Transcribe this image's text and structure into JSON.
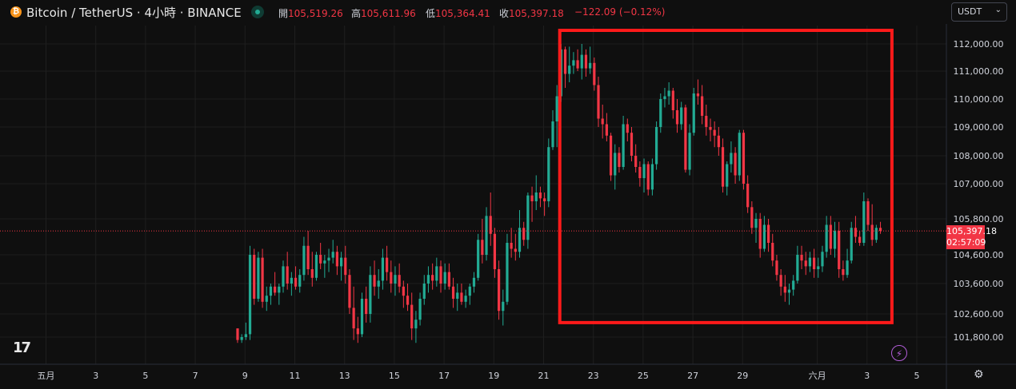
{
  "header": {
    "coin_icon": "bitcoin-icon",
    "symbol_title": "Bitcoin / TetherUS · 4小時 · BINANCE",
    "ohlc": [
      {
        "label": "開",
        "value": "105,519.26"
      },
      {
        "label": "高",
        "value": "105,611.96"
      },
      {
        "label": "低",
        "value": "105,364.41"
      },
      {
        "label": "收",
        "value": "105,397.18"
      }
    ],
    "change": "−122.09 (−0.12%)",
    "currency": "USDT"
  },
  "price_tag": {
    "price": "105,397.18",
    "countdown": "02:57:09"
  },
  "colors": {
    "up": "#22ab94",
    "down": "#f23645",
    "highlight_box": "#ff1a1a",
    "grid": "#1e1e1e",
    "background": "#0f0f0f"
  },
  "chart_data": {
    "type": "candlestick",
    "title": "Bitcoin / TetherUS · 4小時 · BINANCE",
    "y_ticks": [
      "112,000.00",
      "111,000.00",
      "110,000.00",
      "109,000.00",
      "108,000.00",
      "107,000.00",
      "105,800.00",
      "104,600.00",
      "103,600.00",
      "102,600.00",
      "101,800.00"
    ],
    "y_tick_values": [
      112000,
      111000,
      110000,
      109000,
      108000,
      107000,
      105800,
      104600,
      103600,
      102600,
      101800
    ],
    "x_ticks": [
      {
        "label": "五月",
        "day": 1
      },
      {
        "label": "3",
        "day": 3
      },
      {
        "label": "5",
        "day": 5
      },
      {
        "label": "7",
        "day": 7
      },
      {
        "label": "9",
        "day": 9
      },
      {
        "label": "11",
        "day": 11
      },
      {
        "label": "13",
        "day": 13
      },
      {
        "label": "15",
        "day": 15
      },
      {
        "label": "17",
        "day": 17
      },
      {
        "label": "19",
        "day": 19
      },
      {
        "label": "21",
        "day": 21
      },
      {
        "label": "23",
        "day": 23
      },
      {
        "label": "25",
        "day": 25
      },
      {
        "label": "27",
        "day": 27
      },
      {
        "label": "29",
        "day": 29
      },
      {
        "label": "六月",
        "day": 32
      },
      {
        "label": "3",
        "day": 34
      },
      {
        "label": "5",
        "day": 36
      }
    ],
    "current_price": 105397.18,
    "highlight_range": {
      "day_start": 21.65,
      "day_end": 35.0,
      "price_low": 102300,
      "price_high": 112500
    },
    "candles_start_day": 8.7,
    "candles_step_days": 0.1667,
    "candles": [
      [
        102100,
        102100,
        101600,
        101700
      ],
      [
        101700,
        101900,
        101600,
        101800
      ],
      [
        101800,
        102300,
        101700,
        101900
      ],
      [
        101900,
        104900,
        101700,
        104600
      ],
      [
        104600,
        104800,
        102900,
        103100
      ],
      [
        103100,
        104700,
        103000,
        104500
      ],
      [
        104500,
        104800,
        102800,
        103000
      ],
      [
        103000,
        103500,
        102700,
        103200
      ],
      [
        103200,
        103600,
        102900,
        103500
      ],
      [
        103500,
        104000,
        103200,
        103300
      ],
      [
        103300,
        103600,
        102900,
        103500
      ],
      [
        103500,
        104400,
        103300,
        104200
      ],
      [
        104200,
        104700,
        103400,
        103600
      ],
      [
        103600,
        104000,
        103200,
        103800
      ],
      [
        103800,
        104200,
        103400,
        103500
      ],
      [
        103500,
        104100,
        103300,
        103900
      ],
      [
        103900,
        105200,
        103700,
        104900
      ],
      [
        104900,
        105400,
        103900,
        104100
      ],
      [
        104100,
        104700,
        103500,
        103800
      ],
      [
        103800,
        104700,
        103700,
        104600
      ],
      [
        104600,
        105000,
        104100,
        104300
      ],
      [
        104300,
        104600,
        103800,
        104400
      ],
      [
        104400,
        104800,
        104000,
        104500
      ],
      [
        104500,
        105100,
        104300,
        104700
      ],
      [
        104700,
        104900,
        103900,
        104200
      ],
      [
        104200,
        104700,
        103700,
        104500
      ],
      [
        104500,
        104900,
        103600,
        103900
      ],
      [
        103900,
        104100,
        102600,
        102800
      ],
      [
        102800,
        103500,
        101700,
        102100
      ],
      [
        102100,
        102500,
        101600,
        101900
      ],
      [
        101900,
        103300,
        101800,
        103100
      ],
      [
        103100,
        103500,
        102300,
        102600
      ],
      [
        102600,
        104200,
        102300,
        103900
      ],
      [
        103900,
        104400,
        103200,
        103500
      ],
      [
        103500,
        104100,
        103100,
        103700
      ],
      [
        103700,
        104800,
        103400,
        104500
      ],
      [
        104500,
        104900,
        103700,
        104000
      ],
      [
        104000,
        104400,
        103300,
        103600
      ],
      [
        103600,
        104200,
        103200,
        103900
      ],
      [
        103900,
        104300,
        103300,
        103500
      ],
      [
        103500,
        103700,
        102800,
        103200
      ],
      [
        103200,
        103600,
        102700,
        102900
      ],
      [
        102900,
        103300,
        101700,
        102100
      ],
      [
        102100,
        102700,
        101600,
        102400
      ],
      [
        102400,
        103300,
        102200,
        103100
      ],
      [
        103100,
        103900,
        102900,
        103600
      ],
      [
        103600,
        104200,
        103300,
        103900
      ],
      [
        103900,
        104300,
        103400,
        103700
      ],
      [
        103700,
        104500,
        103500,
        104200
      ],
      [
        104200,
        104400,
        103300,
        103600
      ],
      [
        103600,
        104300,
        103400,
        104000
      ],
      [
        104000,
        104300,
        103400,
        103500
      ],
      [
        103500,
        103800,
        102800,
        103100
      ],
      [
        103100,
        103600,
        102700,
        103300
      ],
      [
        103300,
        103600,
        102900,
        103000
      ],
      [
        103000,
        103400,
        102800,
        103200
      ],
      [
        103200,
        103600,
        102900,
        103500
      ],
      [
        103500,
        104000,
        103300,
        103800
      ],
      [
        103800,
        105300,
        103700,
        105100
      ],
      [
        105100,
        105800,
        104300,
        104600
      ],
      [
        104600,
        106200,
        104400,
        105900
      ],
      [
        105900,
        106700,
        104900,
        105300
      ],
      [
        105300,
        105500,
        103800,
        104100
      ],
      [
        104100,
        104400,
        102400,
        102700
      ],
      [
        102700,
        103400,
        102200,
        103000
      ],
      [
        103000,
        105300,
        102900,
        105000
      ],
      [
        105000,
        105500,
        104500,
        104800
      ],
      [
        104800,
        105300,
        104400,
        104700
      ],
      [
        104700,
        106100,
        104500,
        105500
      ],
      [
        105500,
        105700,
        104900,
        105100
      ],
      [
        105100,
        106700,
        104800,
        106600
      ],
      [
        106600,
        106900,
        105700,
        106400
      ],
      [
        106400,
        107300,
        106100,
        106700
      ],
      [
        106700,
        106900,
        106200,
        106500
      ],
      [
        106500,
        106700,
        105900,
        106400
      ],
      [
        106400,
        108600,
        106200,
        108300
      ],
      [
        108300,
        109600,
        108200,
        109200
      ],
      [
        109200,
        110500,
        108300,
        110100
      ],
      [
        110100,
        112000,
        109900,
        111800
      ],
      [
        111800,
        111900,
        110400,
        110900
      ],
      [
        110900,
        111900,
        110600,
        111200
      ],
      [
        111200,
        111700,
        110900,
        111400
      ],
      [
        111400,
        111800,
        111000,
        111100
      ],
      [
        111100,
        112000,
        110700,
        111600
      ],
      [
        111600,
        111800,
        110800,
        111100
      ],
      [
        111100,
        111900,
        110900,
        111300
      ],
      [
        111300,
        111500,
        110300,
        110500
      ],
      [
        110500,
        110800,
        109000,
        109300
      ],
      [
        109300,
        109800,
        108600,
        109100
      ],
      [
        109100,
        109500,
        108500,
        108700
      ],
      [
        108700,
        108800,
        107100,
        107300
      ],
      [
        107300,
        108400,
        106800,
        108100
      ],
      [
        108100,
        108300,
        107400,
        107600
      ],
      [
        107600,
        109400,
        107500,
        109100
      ],
      [
        109100,
        109300,
        108500,
        108800
      ],
      [
        108800,
        109000,
        107800,
        108000
      ],
      [
        108000,
        108400,
        107400,
        107600
      ],
      [
        107600,
        107800,
        106900,
        107200
      ],
      [
        107200,
        107900,
        106700,
        107700
      ],
      [
        107700,
        107800,
        106600,
        106800
      ],
      [
        106800,
        107900,
        106600,
        107700
      ],
      [
        107700,
        109200,
        107500,
        109000
      ],
      [
        109000,
        110200,
        108800,
        110000
      ],
      [
        110000,
        110400,
        109700,
        110100
      ],
      [
        110100,
        110600,
        109800,
        110300
      ],
      [
        110300,
        110400,
        109300,
        109600
      ],
      [
        109600,
        110000,
        108800,
        109100
      ],
      [
        109100,
        109900,
        108900,
        109700
      ],
      [
        109700,
        109800,
        107400,
        107500
      ],
      [
        107500,
        109100,
        107300,
        108800
      ],
      [
        108800,
        110400,
        108700,
        110200
      ],
      [
        110200,
        110700,
        109800,
        110100
      ],
      [
        110100,
        110500,
        109100,
        109400
      ],
      [
        109400,
        109800,
        108700,
        109000
      ],
      [
        109000,
        109300,
        108500,
        108900
      ],
      [
        108900,
        109200,
        108300,
        108700
      ],
      [
        108700,
        109000,
        108000,
        108300
      ],
      [
        108300,
        108600,
        106700,
        106900
      ],
      [
        106900,
        107800,
        106600,
        107700
      ],
      [
        107700,
        108500,
        107400,
        108100
      ],
      [
        108100,
        108300,
        107000,
        107300
      ],
      [
        107300,
        108900,
        107100,
        108800
      ],
      [
        108800,
        108900,
        106800,
        107000
      ],
      [
        107000,
        107300,
        106000,
        106200
      ],
      [
        106200,
        106400,
        105300,
        105500
      ],
      [
        105500,
        106000,
        105000,
        105800
      ],
      [
        105800,
        106000,
        104500,
        104800
      ],
      [
        104800,
        105900,
        104700,
        105600
      ],
      [
        105600,
        105800,
        104700,
        105000
      ],
      [
        105000,
        105300,
        104200,
        104400
      ],
      [
        104400,
        104600,
        103700,
        103900
      ],
      [
        103900,
        104100,
        103200,
        103500
      ],
      [
        103500,
        103900,
        103000,
        103300
      ],
      [
        103300,
        103600,
        102900,
        103400
      ],
      [
        103400,
        103900,
        103200,
        103700
      ],
      [
        103700,
        104900,
        103600,
        104600
      ],
      [
        104600,
        104900,
        104100,
        104400
      ],
      [
        104400,
        104700,
        103900,
        104200
      ],
      [
        104200,
        104700,
        104000,
        104500
      ],
      [
        104500,
        104800,
        103800,
        104100
      ],
      [
        104100,
        104500,
        103800,
        104200
      ],
      [
        104200,
        104900,
        104000,
        104700
      ],
      [
        104700,
        105900,
        104500,
        105600
      ],
      [
        105600,
        105900,
        104600,
        104800
      ],
      [
        104800,
        105700,
        104500,
        105400
      ],
      [
        105400,
        105700,
        103800,
        104100
      ],
      [
        104100,
        104400,
        103700,
        103900
      ],
      [
        103900,
        104800,
        103800,
        104400
      ],
      [
        104400,
        105700,
        104300,
        105500
      ],
      [
        105500,
        105900,
        105000,
        105200
      ],
      [
        105200,
        105400,
        104900,
        105000
      ],
      [
        105000,
        106700,
        104900,
        106400
      ],
      [
        106400,
        106500,
        105400,
        105600
      ],
      [
        105600,
        106300,
        104900,
        105100
      ],
      [
        105100,
        105600,
        105000,
        105500
      ],
      [
        105500,
        105700,
        105300,
        105400
      ]
    ]
  }
}
